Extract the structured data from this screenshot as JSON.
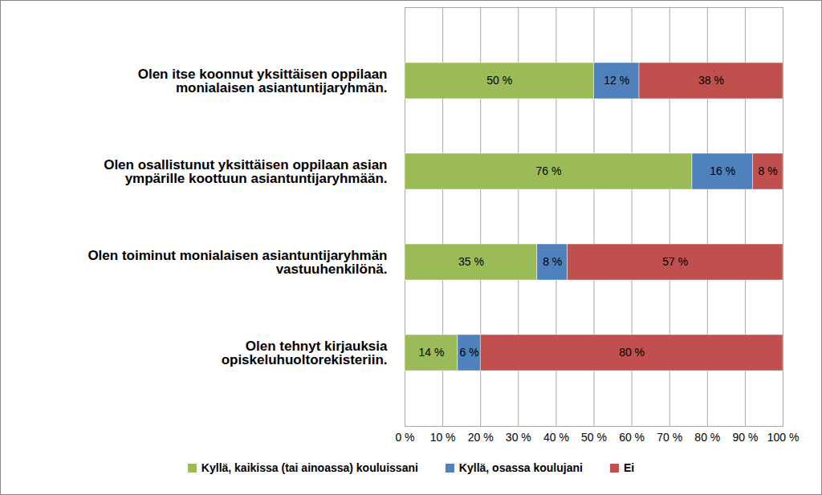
{
  "chart_data": {
    "type": "bar",
    "orientation": "horizontal",
    "stacked": true,
    "data_labels": true,
    "grid": true,
    "categories": [
      "Olen itse koonnut yksittäisen oppilaan monialaisen asiantuntijaryhmän.",
      "Olen osallistunut yksittäisen oppilaan asian ympärille koottuun asiantuntijaryhmään.",
      "Olen toiminut monialaisen asiantuntijaryhmän vastuuhenkilönä.",
      "Olen tehnyt kirjauksia opiskeluhuoltorekisteriin."
    ],
    "series": [
      {
        "name": "Kyllä, kaikissa (tai ainoassa) kouluissani",
        "color": "#9bbb59",
        "values": [
          50,
          76,
          35,
          14
        ],
        "value_labels": [
          "50 %",
          "76 %",
          "35 %",
          "14 %"
        ]
      },
      {
        "name": "Kyllä, osassa koulujani",
        "color": "#4f81bd",
        "values": [
          12,
          16,
          8,
          6
        ],
        "value_labels": [
          "12 %",
          "16 %",
          "8 %",
          "6 %"
        ]
      },
      {
        "name": "Ei",
        "color": "#c0504d",
        "values": [
          38,
          8,
          57,
          80
        ],
        "value_labels": [
          "38 %",
          "8 %",
          "57 %",
          "80 %"
        ]
      }
    ],
    "xlim": [
      0,
      100
    ],
    "xticks": [
      {
        "value": 0,
        "label": "0 %"
      },
      {
        "value": 10,
        "label": "10 %"
      },
      {
        "value": 20,
        "label": "20 %"
      },
      {
        "value": 30,
        "label": "30 %"
      },
      {
        "value": 40,
        "label": "40 %"
      },
      {
        "value": 50,
        "label": "50 %"
      },
      {
        "value": 60,
        "label": "60 %"
      },
      {
        "value": 70,
        "label": "70 %"
      },
      {
        "value": 80,
        "label": "80 %"
      },
      {
        "value": 90,
        "label": "90 %"
      },
      {
        "value": 100,
        "label": "100 %"
      }
    ]
  }
}
